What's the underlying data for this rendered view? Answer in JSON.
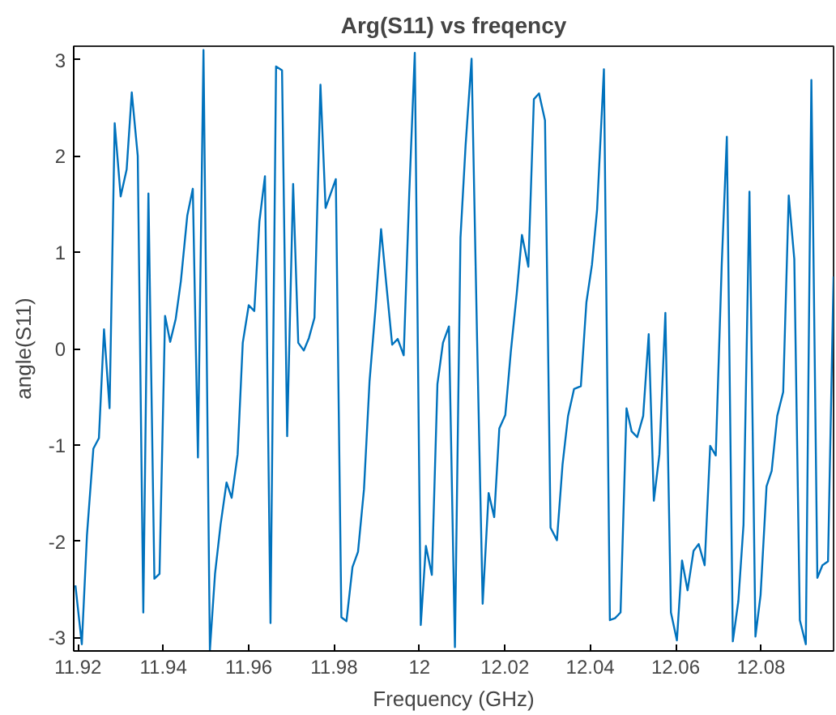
{
  "chart_data": {
    "type": "line",
    "title": "Arg(S11) vs freqency",
    "xlabel": "Frequency (GHz)",
    "ylabel": "angle(S11)",
    "xlim": [
      11.919,
      12.097
    ],
    "ylim": [
      -3.14,
      3.14
    ],
    "xticks": [
      11.92,
      11.94,
      11.96,
      11.98,
      12,
      12.02,
      12.04,
      12.06,
      12.08
    ],
    "yticks": [
      -3,
      -2,
      -1,
      0,
      1,
      2,
      3
    ],
    "grid": false,
    "marker": "none",
    "line_style": "solid",
    "series": [
      {
        "color": "#0072bd",
        "x": [
          11.9194,
          11.9209,
          11.9221,
          11.9236,
          11.9249,
          11.9261,
          11.9274,
          11.9286,
          11.93,
          11.9314,
          11.9326,
          11.934,
          11.9353,
          11.9365,
          11.9379,
          11.9391,
          11.9404,
          11.9416,
          11.9429,
          11.9441,
          11.9456,
          11.9469,
          11.9481,
          11.9494,
          11.9509,
          11.9521,
          11.9534,
          11.9548,
          11.956,
          11.9574,
          11.9586,
          11.96,
          11.9613,
          11.9625,
          11.9638,
          11.9651,
          11.9664,
          11.9678,
          11.969,
          11.9704,
          11.9716,
          11.9729,
          11.9741,
          11.9754,
          11.9768,
          11.978,
          11.9804,
          11.9817,
          11.9829,
          11.9843,
          11.9856,
          11.987,
          11.9883,
          11.9897,
          11.991,
          11.9924,
          11.9936,
          11.9949,
          11.9963,
          11.9976,
          11.9989,
          12.0003,
          12.0015,
          12.0029,
          12.0042,
          12.0055,
          12.0069,
          12.0083,
          12.0096,
          12.0108,
          12.0122,
          12.0135,
          12.0148,
          12.0162,
          12.0175,
          12.0187,
          12.0201,
          12.0214,
          12.0228,
          12.024,
          12.0255,
          12.0268,
          12.028,
          12.0294,
          12.0307,
          12.0322,
          12.0335,
          12.0348,
          12.0362,
          12.0378,
          12.0391,
          12.0404,
          12.0416,
          12.0432,
          12.0446,
          12.0458,
          12.0471,
          12.0485,
          12.0497,
          12.051,
          12.0524,
          12.0537,
          12.0549,
          12.0562,
          12.0576,
          12.0589,
          12.0603,
          12.0615,
          12.0628,
          12.0642,
          12.0654,
          12.0668,
          12.0681,
          12.0694,
          12.0708,
          12.072,
          12.0734,
          12.0747,
          12.0759,
          12.0773,
          12.0787,
          12.0799,
          12.0813,
          12.0825,
          12.0838,
          12.0852,
          12.0865,
          12.0878,
          12.0891,
          12.0905,
          12.0918,
          12.0932,
          12.0944,
          12.0957,
          12.097
        ],
        "values": [
          -2.46,
          -3.07,
          -1.94,
          -1.04,
          -0.93,
          0.2,
          -0.62,
          2.34,
          1.58,
          1.86,
          2.66,
          2.0,
          -2.74,
          1.61,
          -2.39,
          -2.34,
          0.34,
          0.07,
          0.31,
          0.7,
          1.38,
          1.66,
          -1.13,
          3.1,
          -3.13,
          -2.34,
          -1.83,
          -1.39,
          -1.55,
          -1.1,
          0.06,
          0.45,
          0.39,
          1.32,
          1.79,
          -2.85,
          2.93,
          2.89,
          -0.91,
          1.71,
          0.06,
          -0.02,
          0.11,
          0.32,
          2.74,
          1.46,
          1.76,
          -2.79,
          -2.83,
          -2.27,
          -2.11,
          -1.46,
          -0.34,
          0.42,
          1.24,
          0.59,
          0.04,
          0.1,
          -0.07,
          1.61,
          3.07,
          -2.87,
          -2.05,
          -2.35,
          -0.37,
          0.06,
          0.23,
          -3.1,
          1.15,
          2.11,
          3.01,
          0.08,
          -2.65,
          -1.5,
          -1.75,
          -0.83,
          -0.69,
          -0.03,
          0.58,
          1.18,
          0.85,
          2.59,
          2.65,
          2.37,
          -1.86,
          -1.99,
          -1.21,
          -0.7,
          -0.42,
          -0.39,
          0.48,
          0.87,
          1.44,
          2.9,
          -2.82,
          -2.8,
          -2.74,
          -0.62,
          -0.86,
          -0.92,
          -0.7,
          0.15,
          -1.58,
          -1.1,
          0.37,
          -2.74,
          -3.03,
          -2.2,
          -2.51,
          -2.1,
          -2.03,
          -2.25,
          -1.01,
          -1.11,
          0.87,
          2.2,
          -3.04,
          -2.62,
          -1.83,
          1.63,
          -2.99,
          -2.56,
          -1.43,
          -1.27,
          -0.7,
          -0.45,
          1.59,
          0.93,
          -2.82,
          -3.07,
          2.79,
          -2.38,
          -2.25,
          -2.21,
          0.75
        ]
      }
    ]
  }
}
